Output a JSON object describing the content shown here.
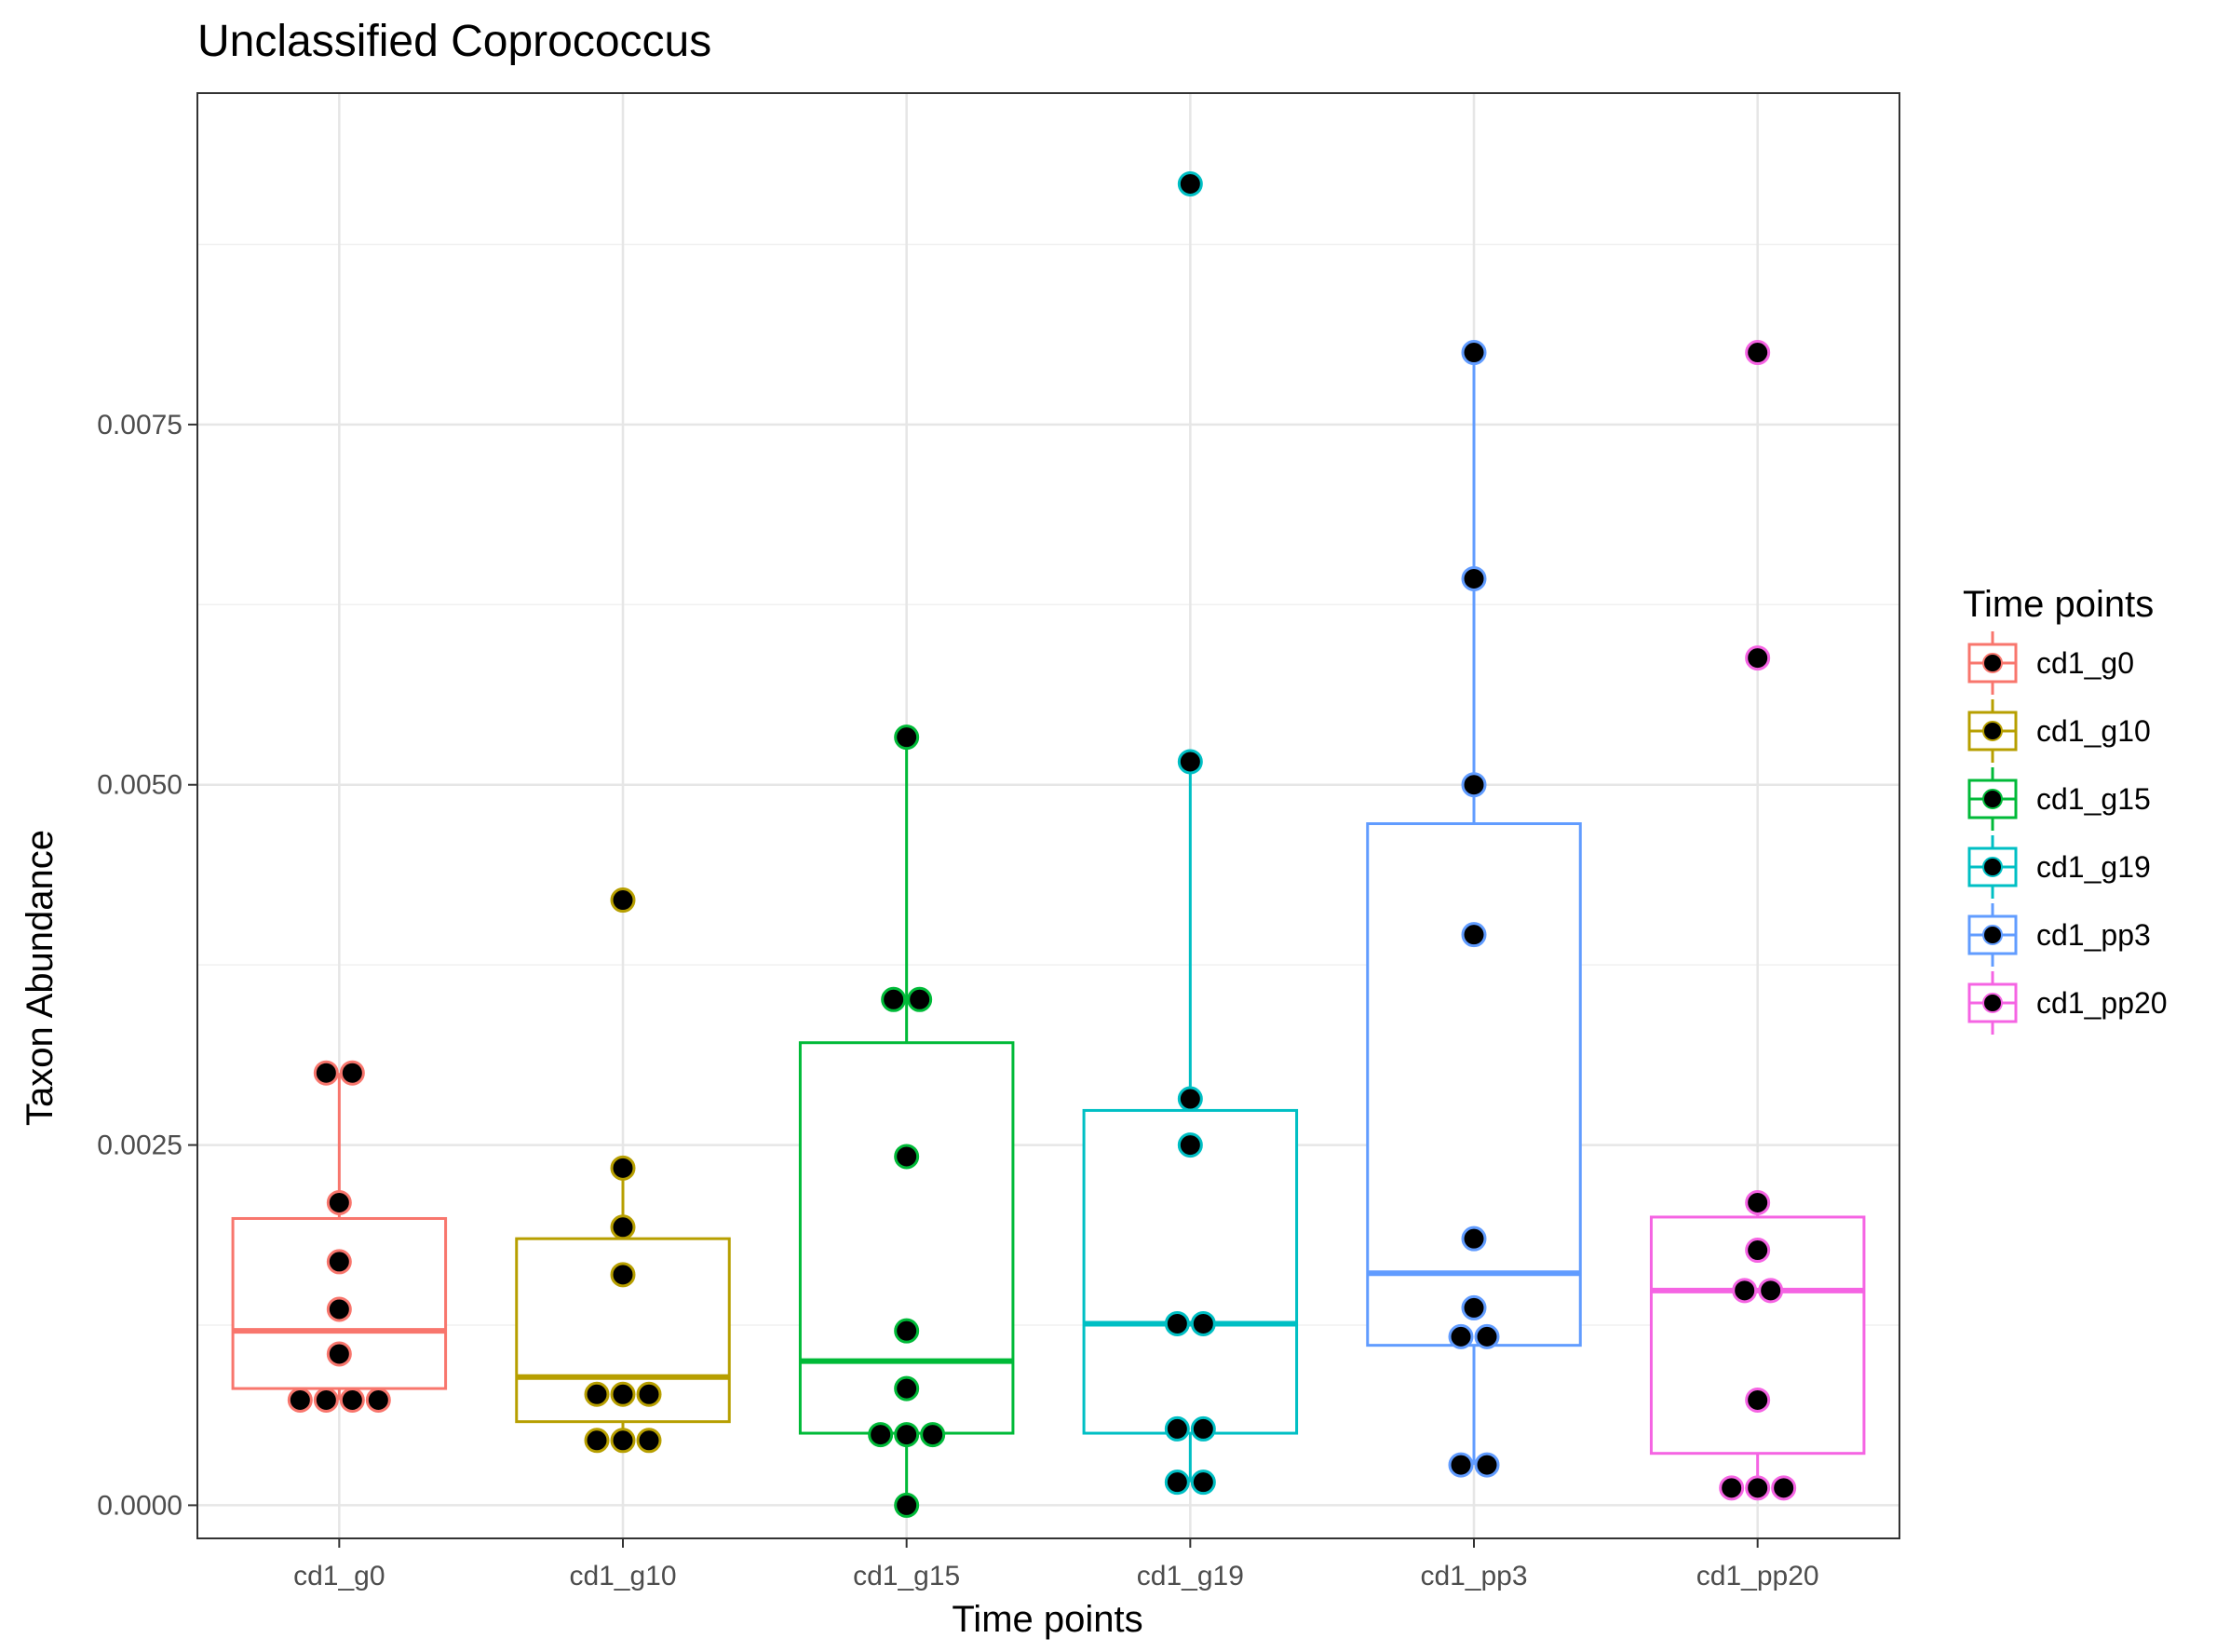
{
  "chart_data": {
    "type": "box",
    "title": "Unclassified  Coprococcus",
    "xlabel": "Time points",
    "ylabel": "Taxon Abundance",
    "ylim": [
      -0.00023,
      0.0098
    ],
    "yticks": [
      0,
      0.0025,
      0.005,
      0.0075
    ],
    "ytick_labels": [
      "0.0000",
      "0.0025",
      "0.0050",
      "0.0075"
    ],
    "grid": true,
    "legend": {
      "title": "Time points",
      "position": "right"
    },
    "categories": [
      "cd1_g0",
      "cd1_g10",
      "cd1_g15",
      "cd1_g19",
      "cd1_pp3",
      "cd1_pp20"
    ],
    "series": [
      {
        "name": "cd1_g0",
        "color": "#F8766D",
        "box": {
          "q1": 0.00081,
          "median": 0.00121,
          "q3": 0.00199,
          "whisker_low": 0.00073,
          "whisker_high": 0.003
        },
        "points": [
          0.00073,
          0.00073,
          0.00073,
          0.00073,
          0.00105,
          0.00136,
          0.00169,
          0.0021,
          0.003,
          0.003
        ]
      },
      {
        "name": "cd1_g10",
        "color": "#B79F00",
        "box": {
          "q1": 0.00058,
          "median": 0.00089,
          "q3": 0.00185,
          "whisker_low": 0.00045,
          "whisker_high": 0.00234
        },
        "points": [
          0.00045,
          0.00045,
          0.00045,
          0.00077,
          0.00077,
          0.00077,
          0.0016,
          0.00193,
          0.00234,
          0.0042
        ]
      },
      {
        "name": "cd1_g15",
        "color": "#00BA38",
        "box": {
          "q1": 0.0005,
          "median": 0.001,
          "q3": 0.00321,
          "whisker_low": 0.0,
          "whisker_high": 0.00533
        },
        "points": [
          0.0,
          0.00049,
          0.00049,
          0.00049,
          0.00081,
          0.00121,
          0.00242,
          0.00351,
          0.00351,
          0.00533
        ]
      },
      {
        "name": "cd1_g19",
        "color": "#00BFC4",
        "box": {
          "q1": 0.0005,
          "median": 0.00126,
          "q3": 0.00274,
          "whisker_low": 0.00016,
          "whisker_high": 0.00516
        },
        "points": [
          0.00016,
          0.00016,
          0.00053,
          0.00053,
          0.00126,
          0.00126,
          0.0025,
          0.00282,
          0.00516,
          0.00917
        ]
      },
      {
        "name": "cd1_pp3",
        "color": "#619CFF",
        "box": {
          "q1": 0.00111,
          "median": 0.00161,
          "q3": 0.00473,
          "whisker_low": 0.00028,
          "whisker_high": 0.008
        },
        "points": [
          0.00028,
          0.00028,
          0.00117,
          0.00117,
          0.00137,
          0.00185,
          0.00396,
          0.005,
          0.00643,
          0.008
        ]
      },
      {
        "name": "cd1_pp20",
        "color": "#F564E3",
        "box": {
          "q1": 0.00036,
          "median": 0.00149,
          "q3": 0.002,
          "whisker_low": 0.00012,
          "whisker_high": 0.0021
        },
        "points": [
          0.00012,
          0.00012,
          0.00012,
          0.00073,
          0.00149,
          0.00149,
          0.00177,
          0.0021,
          0.00588,
          0.008
        ]
      }
    ]
  }
}
